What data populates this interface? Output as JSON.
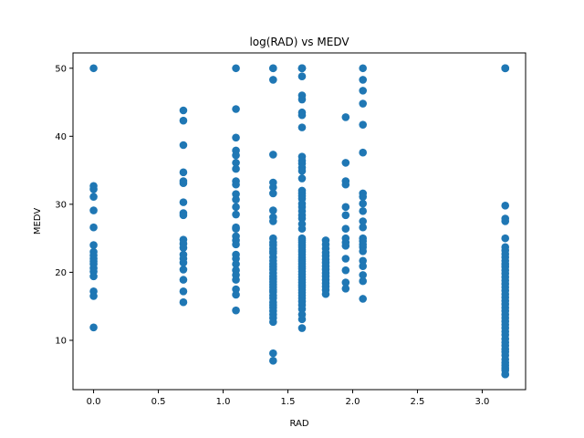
{
  "chart_data": {
    "type": "scatter",
    "title": "log(RAD) vs MEDV",
    "xlabel": "RAD",
    "ylabel": "MEDV",
    "xlim": [
      -0.159,
      3.335
    ],
    "ylim": [
      2.75,
      52.25
    ],
    "xticks": [
      0.0,
      0.5,
      1.0,
      1.5,
      2.0,
      2.5,
      3.0
    ],
    "xtick_labels": [
      "0.0",
      "0.5",
      "1.0",
      "1.5",
      "2.0",
      "2.5",
      "3.0"
    ],
    "yticks": [
      10,
      20,
      30,
      40,
      50
    ],
    "ytick_labels": [
      "10",
      "20",
      "30",
      "40",
      "50"
    ],
    "grid": false,
    "color": "#1f77b4",
    "series": [
      {
        "groups": [
          {
            "x": 0.0,
            "y": [
              50.0,
              32.7,
              32.2,
              31.1,
              29.1,
              26.6,
              24.0,
              23.0,
              22.5,
              22.0,
              21.6,
              21.2,
              20.6,
              20.1,
              19.4,
              17.2,
              16.5,
              11.9
            ]
          },
          {
            "x": 0.693,
            "y": [
              43.8,
              42.3,
              38.7,
              34.7,
              33.4,
              33.1,
              30.3,
              28.7,
              28.4,
              24.8,
              24.2,
              23.6,
              22.6,
              22.0,
              21.4,
              20.4,
              18.9,
              17.2,
              15.6
            ]
          },
          {
            "x": 1.099,
            "y": [
              50.0,
              44.0,
              39.8,
              37.9,
              37.2,
              36.1,
              35.2,
              33.4,
              32.9,
              31.5,
              30.7,
              29.6,
              28.5,
              26.6,
              26.4,
              25.3,
              24.7,
              24.1,
              22.6,
              22.0,
              21.2,
              20.3,
              19.6,
              18.9,
              17.5,
              16.7,
              14.4
            ]
          },
          {
            "x": 1.386,
            "y": [
              50.0,
              50.0,
              48.3,
              37.3,
              33.2,
              32.5,
              31.6,
              29.1,
              28.1,
              27.5,
              25.0,
              24.4,
              24.0,
              23.5,
              23.1,
              22.8,
              22.2,
              21.7,
              21.2,
              20.8,
              20.4,
              19.9,
              19.4,
              19.0,
              18.6,
              18.2,
              17.8,
              17.4,
              17.1,
              16.6,
              16.2,
              15.6,
              15.2,
              14.8,
              14.3,
              13.8,
              13.3,
              12.7,
              8.1,
              7.0
            ]
          },
          {
            "x": 1.609,
            "y": [
              50.0,
              50.0,
              50.0,
              50.0,
              48.8,
              46.0,
              45.4,
              43.5,
              43.1,
              41.3,
              37.0,
              36.4,
              36.0,
              35.4,
              34.9,
              33.8,
              32.0,
              31.6,
              31.2,
              30.8,
              30.1,
              29.6,
              29.0,
              28.4,
              27.9,
              27.1,
              26.4,
              25.0,
              24.7,
              24.4,
              24.0,
              23.7,
              23.3,
              23.0,
              22.6,
              22.2,
              21.9,
              21.6,
              21.2,
              20.8,
              20.5,
              20.1,
              19.7,
              19.3,
              18.9,
              18.5,
              18.1,
              17.8,
              17.4,
              17.0,
              16.6,
              16.2,
              15.7,
              15.2,
              14.6,
              13.8,
              13.1,
              11.8
            ]
          },
          {
            "x": 1.792,
            "y": [
              24.7,
              24.1,
              23.5,
              22.9,
              22.4,
              21.9,
              21.4,
              20.9,
              20.4,
              19.9,
              19.4,
              18.9,
              18.4,
              17.9,
              17.4,
              16.8
            ]
          },
          {
            "x": 1.946,
            "y": [
              42.8,
              36.1,
              33.4,
              32.9,
              29.6,
              28.4,
              26.4,
              25.0,
              24.4,
              23.9,
              22.0,
              20.3,
              18.5,
              17.6
            ]
          },
          {
            "x": 2.079,
            "y": [
              50.0,
              48.3,
              46.7,
              44.8,
              41.7,
              37.6,
              31.6,
              31.1,
              30.1,
              29.0,
              27.5,
              26.6,
              25.0,
              24.6,
              24.1,
              23.7,
              23.1,
              21.7,
              20.9,
              19.6,
              18.7,
              16.1
            ]
          },
          {
            "x": 3.178,
            "y": [
              50.0,
              50.0,
              50.0,
              50.0,
              29.8,
              27.9,
              27.5,
              25.0,
              23.7,
              23.2,
              22.7,
              22.2,
              21.7,
              21.2,
              20.8,
              20.3,
              19.8,
              19.3,
              18.8,
              18.3,
              17.8,
              17.3,
              16.8,
              16.3,
              15.8,
              15.3,
              14.8,
              14.3,
              13.8,
              13.3,
              12.8,
              12.3,
              11.8,
              11.3,
              10.8,
              10.2,
              9.7,
              9.2,
              8.7,
              8.3,
              7.8,
              7.2,
              6.7,
              6.3,
              5.9,
              5.6,
              5.0,
              5.0
            ]
          }
        ]
      }
    ]
  }
}
